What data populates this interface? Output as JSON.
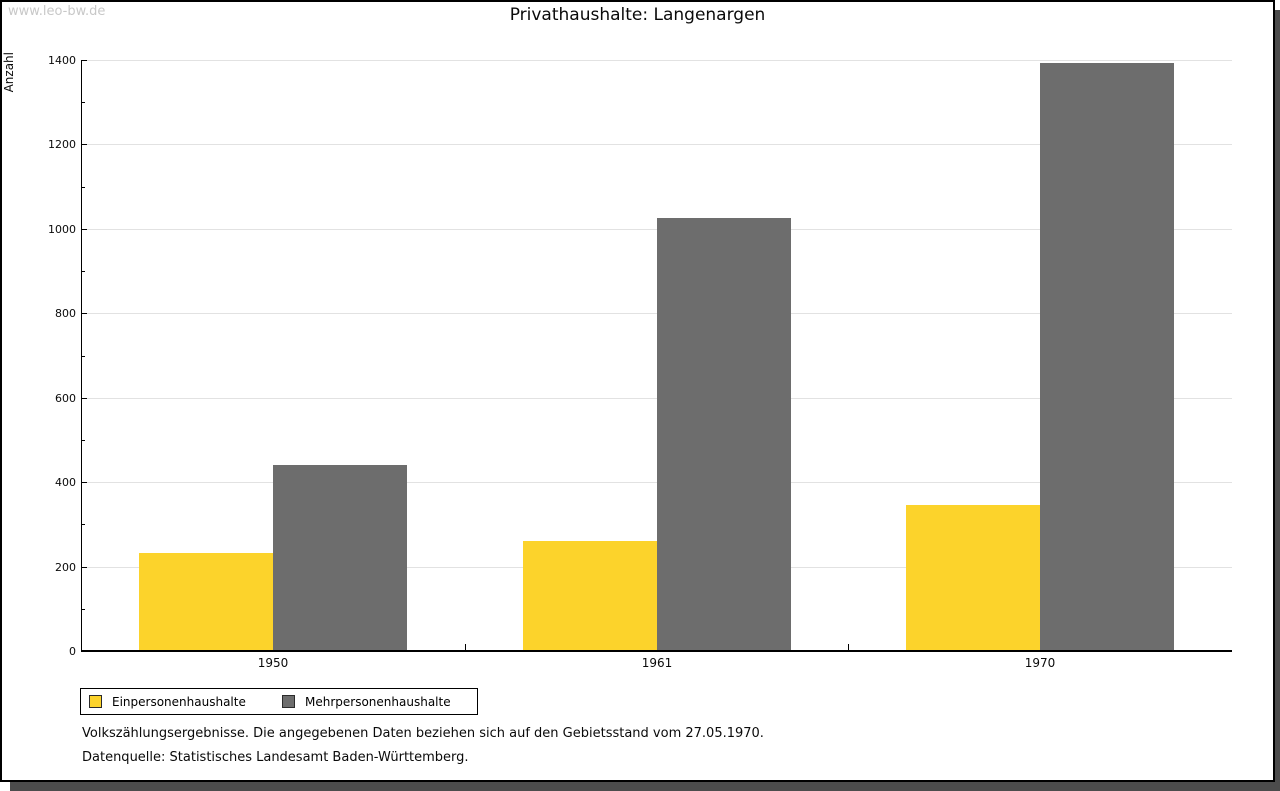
{
  "page": {
    "watermark": "www.leo-bw.de"
  },
  "chart_data": {
    "type": "bar",
    "title": "Privathaushalte: Langenargen",
    "ylabel": "Anzahl",
    "xlabel": "",
    "categories": [
      "1950",
      "1961",
      "1970"
    ],
    "series": [
      {
        "name": "Einpersonenhaushalte",
        "color": "#fcd32b",
        "values": [
          233,
          261,
          347
        ]
      },
      {
        "name": "Mehrpersonenhaushalte",
        "color": "#6d6d6d",
        "values": [
          440,
          1025,
          1393
        ]
      }
    ],
    "ylim": [
      0,
      1400
    ],
    "y_major_step": 200,
    "y_minor_step": 100,
    "grid": true,
    "legend_position": "bottom-left",
    "gridline_color": "#e2e2e2"
  },
  "footer": {
    "line1": "Volkszählungsergebnisse. Die angegebenen Daten beziehen sich auf den Gebietsstand vom 27.05.1970.",
    "line2": "Datenquelle: Statistisches Landesamt Baden-Württemberg."
  }
}
